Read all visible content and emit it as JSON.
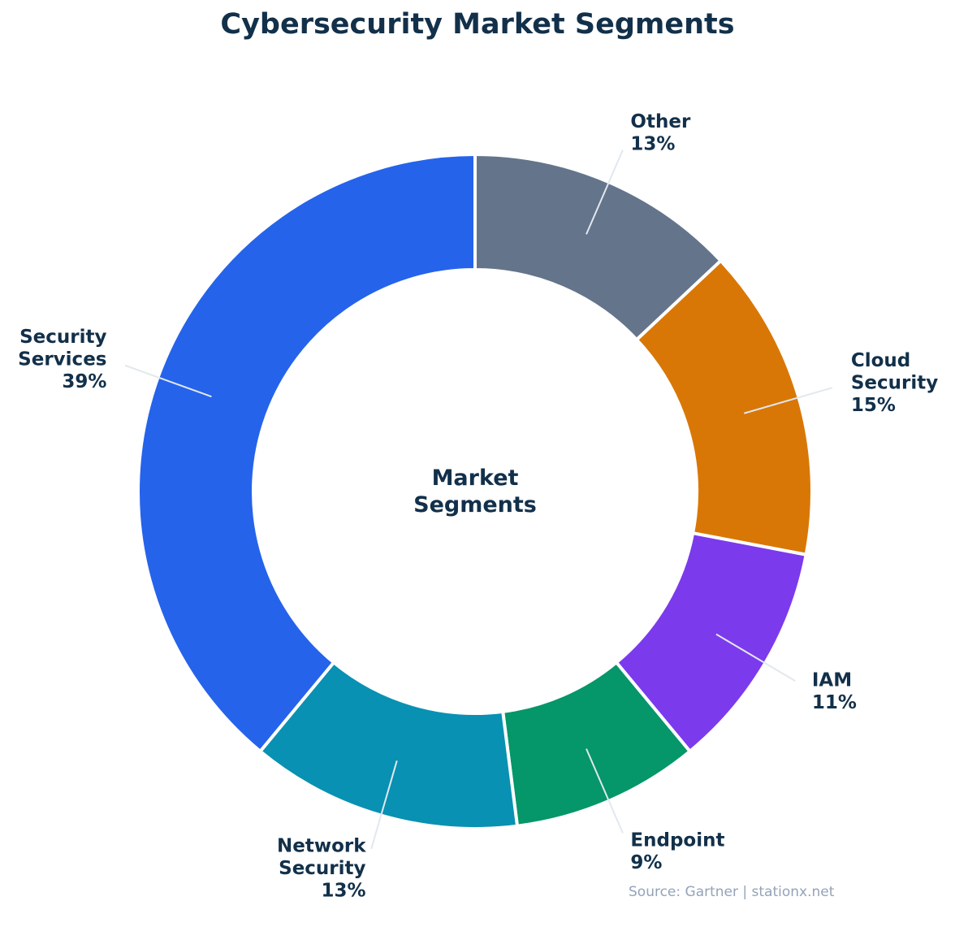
{
  "chart_data": {
    "type": "pie",
    "title": "Cybersecurity Market Segments",
    "center_label": [
      "Market",
      "Segments"
    ],
    "start": "top",
    "direction": "clockwise",
    "donut": true,
    "slices": [
      {
        "label": "Other",
        "value": 13,
        "text": "13%",
        "color": "#64748b"
      },
      {
        "label": "Cloud Security",
        "value": 15,
        "text": "15%",
        "color": "#d97706"
      },
      {
        "label": "IAM",
        "value": 11,
        "text": "11%",
        "color": "#7c3aed"
      },
      {
        "label": "Endpoint",
        "value": 9,
        "text": "9%",
        "color": "#059669"
      },
      {
        "label": "Network Security",
        "value": 13,
        "text": "13%",
        "color": "#0891b2"
      },
      {
        "label": "Security Services",
        "value": 39,
        "text": "39%",
        "color": "#2563eb"
      }
    ],
    "source": "Source: Gartner | stationx.net"
  }
}
